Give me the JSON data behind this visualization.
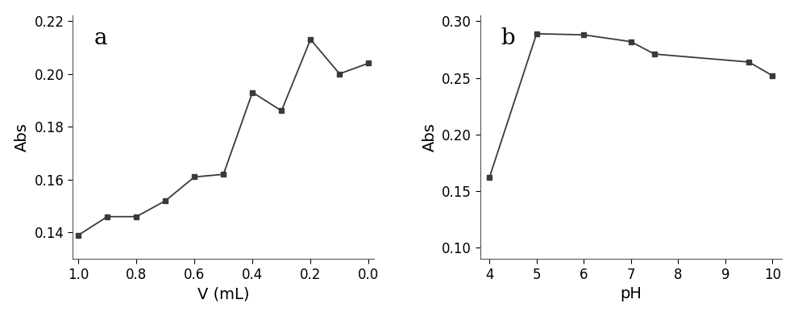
{
  "plot_a": {
    "x": [
      1.0,
      0.9,
      0.8,
      0.7,
      0.6,
      0.5,
      0.4,
      0.3,
      0.2,
      0.1,
      0.0
    ],
    "y": [
      0.139,
      0.146,
      0.146,
      0.152,
      0.161,
      0.162,
      0.193,
      0.186,
      0.213,
      0.2,
      0.204
    ],
    "xlabel": "V (mL)",
    "ylabel": "Abs",
    "label": "a",
    "xlim": [
      1.02,
      -0.02
    ],
    "ylim": [
      0.13,
      0.222
    ],
    "yticks": [
      0.14,
      0.16,
      0.18,
      0.2,
      0.22
    ],
    "xticks": [
      1.0,
      0.8,
      0.6,
      0.4,
      0.2,
      0.0
    ]
  },
  "plot_b": {
    "x": [
      4,
      5,
      6,
      7,
      7.5,
      9.5,
      10
    ],
    "y": [
      0.162,
      0.289,
      0.288,
      0.282,
      0.271,
      0.264,
      0.252
    ],
    "xlabel": "pH",
    "ylabel": "Abs",
    "label": "b",
    "xlim": [
      3.8,
      10.2
    ],
    "ylim": [
      0.09,
      0.305
    ],
    "yticks": [
      0.1,
      0.15,
      0.2,
      0.25,
      0.3
    ],
    "xticks": [
      4,
      5,
      6,
      7,
      8,
      9,
      10
    ]
  },
  "line_color": "#3a3a3a",
  "marker": "s",
  "markersize": 5,
  "linewidth": 1.3,
  "label_fontsize": 20,
  "tick_fontsize": 12,
  "axis_label_fontsize": 14,
  "bg_color": "#ffffff"
}
